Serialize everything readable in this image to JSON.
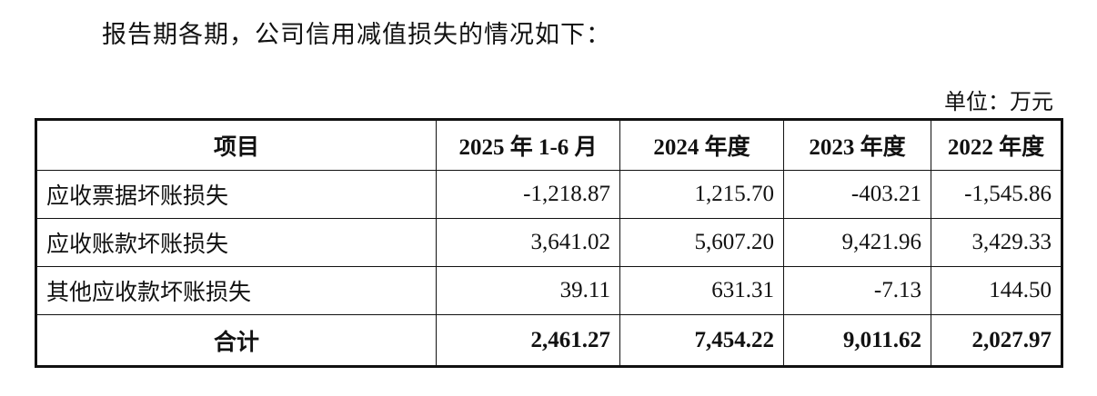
{
  "intro": "报告期各期，公司信用减值损失的情况如下：",
  "unit": "单位：万元",
  "table": {
    "header": [
      "项目",
      "2025 年 1-6 月",
      "2024 年度",
      "2023 年度",
      "2022 年度"
    ],
    "rows": [
      [
        "应收票据坏账损失",
        "-1,218.87",
        "1,215.70",
        "-403.21",
        "-1,545.86"
      ],
      [
        "应收账款坏账损失",
        "3,641.02",
        "5,607.20",
        "9,421.96",
        "3,429.33"
      ],
      [
        "其他应收款坏账损失",
        "39.11",
        "631.31",
        "-7.13",
        "144.50"
      ],
      [
        "合计",
        "2,461.27",
        "7,454.22",
        "9,011.62",
        "2,027.97"
      ]
    ]
  }
}
